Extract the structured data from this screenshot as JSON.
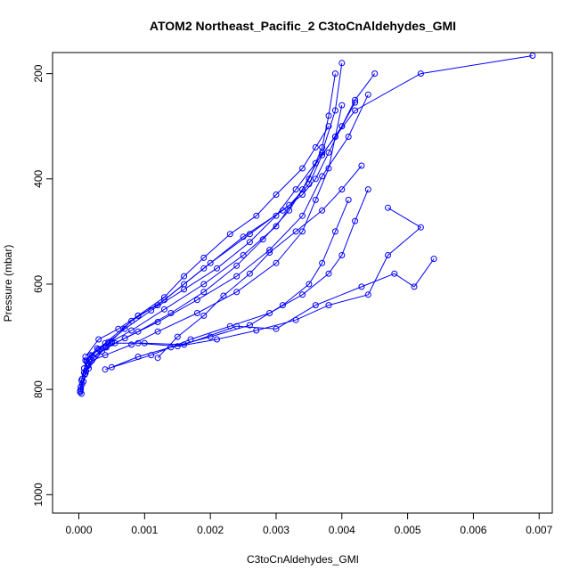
{
  "chart_data": {
    "type": "line",
    "title": "ATOM2 Northeast_Pacific_2 C3toCnAldehydes_GMI",
    "xlabel": "C3toCnAldehydes_GMI",
    "ylabel": "Pressure (mbar)",
    "xlim": [
      -0.0004,
      0.0072
    ],
    "ylim": [
      1035,
      160
    ],
    "y_reversed": true,
    "x_ticks": [
      0.0,
      0.001,
      0.002,
      0.003,
      0.004,
      0.005,
      0.006,
      0.007
    ],
    "x_tick_labels": [
      "0.000",
      "0.001",
      "0.002",
      "0.003",
      "0.004",
      "0.005",
      "0.006",
      "0.007"
    ],
    "y_ticks": [
      200,
      400,
      600,
      800,
      1000
    ],
    "y_tick_labels": [
      "200",
      "400",
      "600",
      "800",
      "1000"
    ],
    "grid": false,
    "marker": "open-circle",
    "line_color": "#0000ff",
    "series": [
      {
        "x": [
          2e-05,
          3e-05,
          5e-05,
          8e-05,
          0.00012,
          0.00018,
          0.00028,
          0.00045,
          0.0007,
          0.0011,
          0.0016,
          0.0021,
          0.0026,
          0.003,
          0.0033,
          0.0036,
          0.0039,
          0.0042,
          0.0052,
          0.0069
        ],
        "y": [
          805,
          795,
          780,
          760,
          745,
          735,
          722,
          710,
          685,
          650,
          610,
          570,
          520,
          470,
          420,
          370,
          320,
          270,
          200,
          166
        ]
      },
      {
        "x": [
          3e-05,
          5e-05,
          9e-05,
          0.00014,
          0.00022,
          0.00035,
          0.00055,
          0.0009,
          0.0014,
          0.0019,
          0.0024,
          0.0028,
          0.0032,
          0.0035,
          0.0037,
          0.0038,
          0.0039
        ],
        "y": [
          800,
          790,
          772,
          755,
          740,
          728,
          712,
          690,
          655,
          615,
          565,
          515,
          460,
          400,
          340,
          280,
          200
        ]
      },
      {
        "x": [
          4e-05,
          7e-05,
          0.00011,
          0.00017,
          0.00027,
          0.00042,
          0.0007,
          0.0012,
          0.0018,
          0.0024,
          0.0029,
          0.0034,
          0.0037,
          0.0041,
          0.0044
        ],
        "y": [
          808,
          785,
          765,
          748,
          733,
          720,
          703,
          672,
          630,
          585,
          535,
          470,
          395,
          320,
          240
        ]
      },
      {
        "x": [
          2e-05,
          4e-05,
          8e-05,
          0.00013,
          0.0002,
          0.0003,
          0.0005,
          0.0008,
          0.0013,
          0.0019,
          0.0025,
          0.003,
          0.0034,
          0.0037,
          0.0039,
          0.004
        ],
        "y": [
          803,
          783,
          768,
          750,
          736,
          724,
          709,
          688,
          648,
          600,
          545,
          490,
          420,
          350,
          270,
          180
        ]
      },
      {
        "x": [
          0.0001,
          0.0002,
          0.0004,
          0.0008,
          0.0012,
          0.0018,
          0.0024,
          0.003,
          0.0034,
          0.0036,
          0.0038,
          0.0039,
          0.004
        ],
        "y": [
          770,
          745,
          735,
          715,
          690,
          655,
          615,
          560,
          500,
          440,
          380,
          320,
          260
        ]
      },
      {
        "x": [
          0.0005,
          0.0009,
          0.0014,
          0.002,
          0.0026,
          0.0031,
          0.0035,
          0.0037,
          0.0039,
          0.0041
        ],
        "y": [
          758,
          738,
          720,
          700,
          678,
          640,
          600,
          560,
          500,
          440
        ]
      },
      {
        "x": [
          0.0004,
          0.0011,
          0.0017,
          0.0023,
          0.0029,
          0.0034,
          0.0038,
          0.004,
          0.0042,
          0.0044
        ],
        "y": [
          762,
          735,
          705,
          680,
          655,
          620,
          580,
          545,
          480,
          420
        ]
      },
      {
        "x": [
          0.0005,
          0.001,
          0.0016,
          0.0024,
          0.003,
          0.0036,
          0.0043,
          0.0048,
          0.0051,
          0.0054
        ],
        "y": [
          712,
          712,
          715,
          680,
          685,
          640,
          605,
          580,
          605,
          552
        ]
      },
      {
        "x": [
          0.0009,
          0.0015,
          0.0021,
          0.0027,
          0.0033,
          0.0038,
          0.0044,
          0.0047,
          0.0052,
          0.0047
        ],
        "y": [
          712,
          718,
          705,
          688,
          668,
          640,
          620,
          545,
          492,
          455
        ]
      },
      {
        "x": [
          0.0001,
          0.0004,
          0.0009,
          0.0013,
          0.0016,
          0.0019,
          0.0023,
          0.0027,
          0.003,
          0.0034,
          0.0036,
          0.0038
        ],
        "y": [
          745,
          712,
          660,
          625,
          585,
          550,
          505,
          470,
          430,
          380,
          340,
          300
        ]
      },
      {
        "x": [
          0.0001,
          0.0003,
          0.0006,
          0.0009,
          0.0012,
          0.0016,
          0.002,
          0.0026,
          0.0032,
          0.0035,
          0.0037,
          0.004,
          0.0042
        ],
        "y": [
          738,
          705,
          685,
          660,
          640,
          600,
          560,
          505,
          450,
          410,
          355,
          300,
          255
        ]
      },
      {
        "x": [
          0.0012,
          0.0015,
          0.0019,
          0.0022,
          0.0026,
          0.0029,
          0.0033,
          0.0037,
          0.004,
          0.0043
        ],
        "y": [
          740,
          700,
          660,
          622,
          580,
          540,
          500,
          460,
          420,
          375
        ]
      },
      {
        "x": [
          0.00015,
          0.0004,
          0.0008,
          0.0013,
          0.0019,
          0.0025,
          0.0031,
          0.0034,
          0.0036,
          0.0038,
          0.004,
          0.0042,
          0.0045
        ],
        "y": [
          760,
          720,
          670,
          630,
          570,
          510,
          460,
          430,
          400,
          350,
          300,
          250,
          200
        ]
      }
    ]
  }
}
